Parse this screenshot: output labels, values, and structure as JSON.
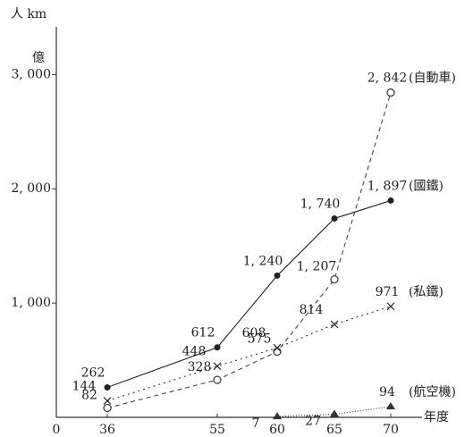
{
  "chart_data": {
    "type": "line",
    "y_unit_label": "人 km",
    "y_unit_prefix": "億",
    "x_label": "年度",
    "origin_label": "0",
    "categories": [
      "36",
      "55",
      "60",
      "65",
      "70"
    ],
    "ylim": [
      0,
      3300
    ],
    "yticks": [
      {
        "value": 1000,
        "label": "1, 000"
      },
      {
        "value": 2000,
        "label": "2, 000"
      },
      {
        "value": 3000,
        "label": "3, 000"
      }
    ],
    "series": [
      {
        "name": "(自動車)",
        "color": "#444",
        "marker": "open-circle",
        "dash": "5,4",
        "values": [
          82,
          328,
          575,
          1207,
          2842
        ],
        "value_labels": [
          "82",
          "328",
          "575",
          "1, 207",
          "2, 842"
        ]
      },
      {
        "name": "(國鐵)",
        "color": "#222",
        "marker": "filled-circle",
        "dash": "none",
        "values": [
          262,
          612,
          1240,
          1740,
          1897
        ],
        "value_labels": [
          "262",
          "612",
          "1, 240",
          "1, 740",
          "1, 897"
        ]
      },
      {
        "name": "(私鐵)",
        "color": "#333",
        "marker": "cross",
        "dash": "2,4",
        "values": [
          144,
          448,
          608,
          814,
          971
        ],
        "value_labels": [
          "144",
          "448",
          "608",
          "814",
          "971"
        ]
      },
      {
        "name": "(航空機)",
        "color": "#333",
        "marker": "triangle",
        "dash": "1,2",
        "values": [
          null,
          null,
          7,
          27,
          94
        ],
        "value_labels": [
          null,
          null,
          "7",
          "27",
          "94"
        ]
      }
    ]
  }
}
